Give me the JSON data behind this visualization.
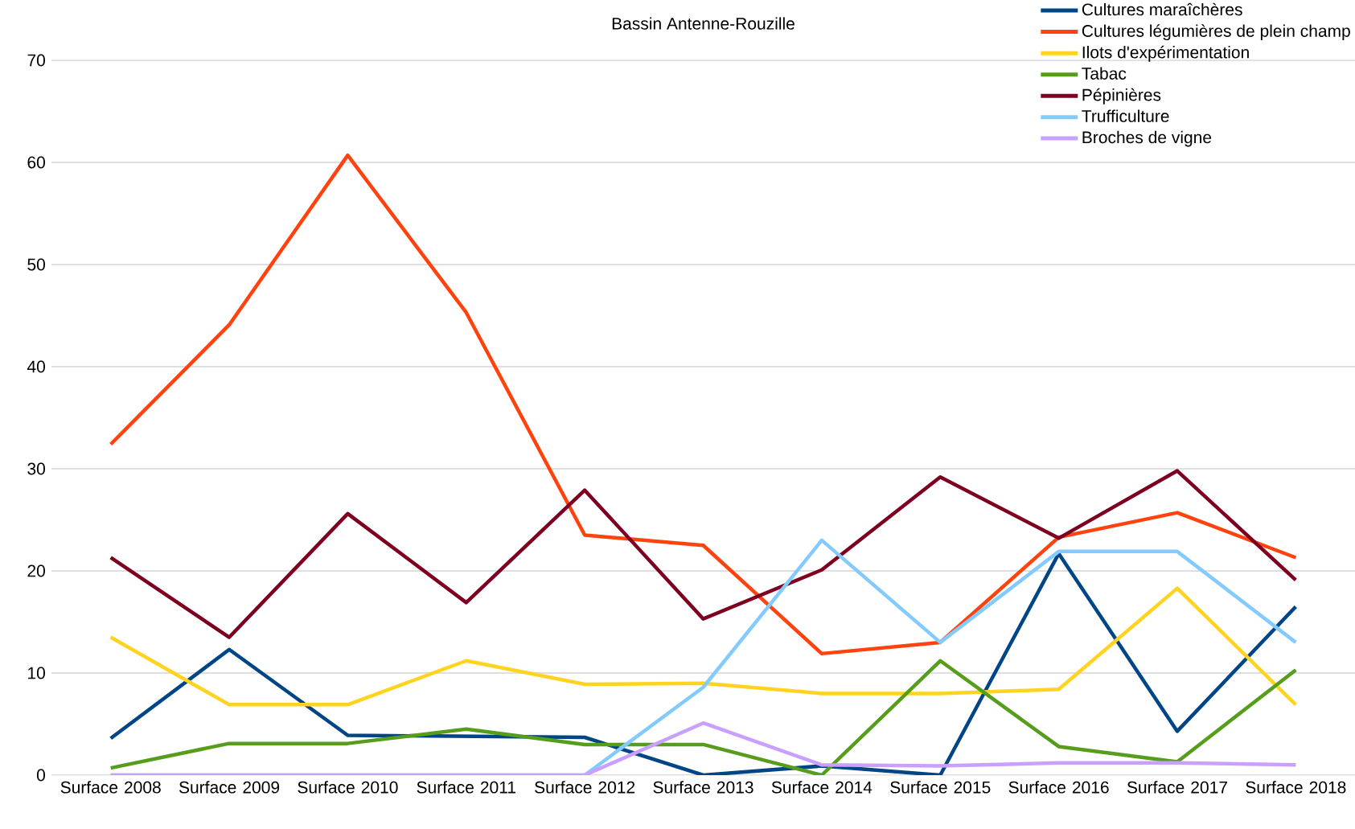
{
  "chart_data": {
    "type": "line",
    "title": "Bassin Antenne-Rouzille",
    "categories": [
      "Surface 2008",
      "Surface 2009",
      "Surface 2010",
      "Surface 2011",
      "Surface 2012",
      "Surface 2013",
      "Surface 2014",
      "Surface 2015",
      "Surface 2016",
      "Surface 2017",
      "Surface 2018"
    ],
    "series": [
      {
        "name": "Cultures maraîchères",
        "color": "#004586",
        "values": [
          3.6,
          12.3,
          3.9,
          3.8,
          3.7,
          0,
          0.9,
          0,
          21.7,
          4.3,
          16.5
        ]
      },
      {
        "name": "Cultures légumières de plein champ",
        "color": "#ff420e",
        "values": [
          32.4,
          44.1,
          60.7,
          45.3,
          23.5,
          22.5,
          11.9,
          13.0,
          23.3,
          25.7,
          21.3
        ]
      },
      {
        "name": "Ilots d'expérimentation",
        "color": "#ffd320",
        "values": [
          13.5,
          6.9,
          6.9,
          11.2,
          8.9,
          9.0,
          8.0,
          8.0,
          8.4,
          18.3,
          6.9
        ]
      },
      {
        "name": "Tabac",
        "color": "#579d1c",
        "values": [
          0.7,
          3.1,
          3.1,
          4.5,
          3.0,
          3.0,
          0,
          11.2,
          2.8,
          1.3,
          10.3
        ]
      },
      {
        "name": "Pépinières",
        "color": "#7e0021",
        "values": [
          21.3,
          13.5,
          25.6,
          16.9,
          27.9,
          15.3,
          20.1,
          29.2,
          23.2,
          29.8,
          19.1
        ]
      },
      {
        "name": "Trufficulture",
        "color": "#83caff",
        "values": [
          0,
          0,
          0,
          0,
          0,
          8.6,
          23.0,
          13.0,
          21.9,
          21.9,
          13.0
        ]
      },
      {
        "name": "Broches de vigne",
        "color": "#c9a0ff",
        "values": [
          0,
          0,
          0,
          0,
          0,
          5.1,
          1.0,
          0.9,
          1.2,
          1.2,
          1.0
        ]
      }
    ],
    "ylim": [
      0,
      70
    ],
    "yticks": [
      0,
      10,
      20,
      30,
      40,
      50,
      60,
      70
    ],
    "grid": "y",
    "legend": "top right",
    "marker": "none",
    "line_style": "solid"
  }
}
